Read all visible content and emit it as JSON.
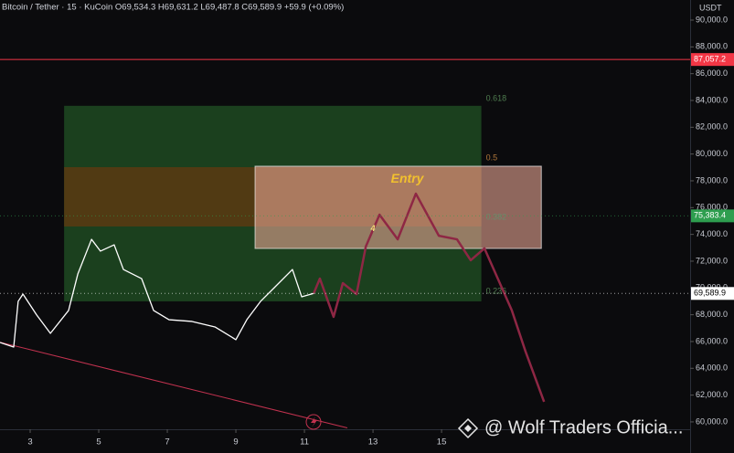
{
  "chart_data": {
    "type": "line",
    "title": "Bitcoin / Tether · 15 · KuCoin  O69,534.3  H69,631.2  L69,487.8  C69,589.9  +59.9 (+0.09%)",
    "currency": "USDT",
    "watermark": "@ Wolf Traders Officia...",
    "xlim": [
      2.12,
      22.25
    ],
    "ylim": [
      59450,
      91500
    ],
    "xticks": [
      3,
      5,
      7,
      9,
      11,
      13,
      15
    ],
    "yticks": [
      {
        "value": 60000,
        "label": "60,000.0"
      },
      {
        "value": 62000,
        "label": "62,000.0"
      },
      {
        "value": 64000,
        "label": "64,000.0"
      },
      {
        "value": 66000,
        "label": "66,000.0"
      },
      {
        "value": 68000,
        "label": "68,000.0"
      },
      {
        "value": 70000,
        "label": "70,000.0"
      },
      {
        "value": 72000,
        "label": "72,000.0"
      },
      {
        "value": 74000,
        "label": "74,000.0"
      },
      {
        "value": 76000,
        "label": "76,000.0"
      },
      {
        "value": 78000,
        "label": "78,000.0"
      },
      {
        "value": 80000,
        "label": "80,000.0"
      },
      {
        "value": 82000,
        "label": "82,000.0"
      },
      {
        "value": 84000,
        "label": "84,000.0"
      },
      {
        "value": 86000,
        "label": "86,000.0"
      },
      {
        "value": 88000,
        "label": "88,000.0"
      },
      {
        "value": 90000,
        "label": "90,000.0"
      }
    ],
    "price": {
      "color": "#ffffff",
      "x": [
        2.12,
        2.52,
        2.65,
        2.79,
        3.19,
        3.59,
        4.12,
        4.39,
        4.79,
        5.05,
        5.45,
        5.72,
        6.25,
        6.6,
        7.05,
        7.72,
        8.39,
        9.0,
        9.32,
        9.72,
        10.12,
        10.65,
        10.92,
        11.27
      ],
      "values": [
        65930,
        65590,
        69000,
        69540,
        67980,
        66610,
        68320,
        71040,
        73630,
        72750,
        73220,
        71380,
        70700,
        68320,
        67630,
        67500,
        67090,
        66140,
        67630,
        69000,
        70020,
        71380,
        69340,
        69590
      ]
    },
    "projection": {
      "color": "#8e2744",
      "x": [
        11.27,
        11.45,
        11.85,
        12.12,
        12.52,
        12.79,
        13.19,
        13.72,
        14.25,
        14.92,
        15.45,
        15.85,
        16.25,
        17.05,
        17.45,
        17.99
      ],
      "values": [
        69590,
        70700,
        67840,
        70360,
        69540,
        73090,
        75470,
        73630,
        77040,
        73900,
        73630,
        72070,
        72960,
        68320,
        65250,
        61500
      ]
    },
    "trendline": {
      "color": "#c2324f",
      "x": [
        2.12,
        12.25
      ],
      "values": [
        65950,
        59550
      ]
    },
    "zones": [
      {
        "x": [
          3.99,
          16.16
        ],
        "y": [
          69000,
          83600
        ],
        "color": "#1f4a22"
      },
      {
        "x": [
          3.99,
          16.16
        ],
        "y": [
          74590,
          79020
        ],
        "color": "#5a3a12"
      },
      {
        "x": [
          9.56,
          17.91
        ],
        "y": [
          72950,
          79090
        ],
        "color": "#e7a593"
      }
    ],
    "fib_levels": [
      {
        "label": "0.618",
        "value": 84130,
        "color": "#4f7c4f"
      },
      {
        "label": "0.5",
        "value": 79700,
        "color": "#b0773a"
      },
      {
        "label": "0.382",
        "value": 75270,
        "color": "#6c8a6c"
      },
      {
        "label": "0.236",
        "value": 69750,
        "color": "#4f7c4f"
      }
    ],
    "annotations": [
      {
        "text": "Entry",
        "x": 14.0,
        "y": 78100,
        "color": "#f2c12e"
      },
      {
        "text": "4",
        "x": 13.0,
        "y": 74400,
        "color": "#f2e27a"
      }
    ],
    "price_markers": [
      {
        "value": 87057.2,
        "label": "87,057.2",
        "color": "#f23645",
        "style": "solid"
      },
      {
        "value": 75383.4,
        "label": "75,383.4",
        "color": "#2e9e4f",
        "style": "dotted"
      },
      {
        "value": 69589.9,
        "label": "69,589.9",
        "color": "#ffffff",
        "style": "dotted"
      }
    ]
  }
}
